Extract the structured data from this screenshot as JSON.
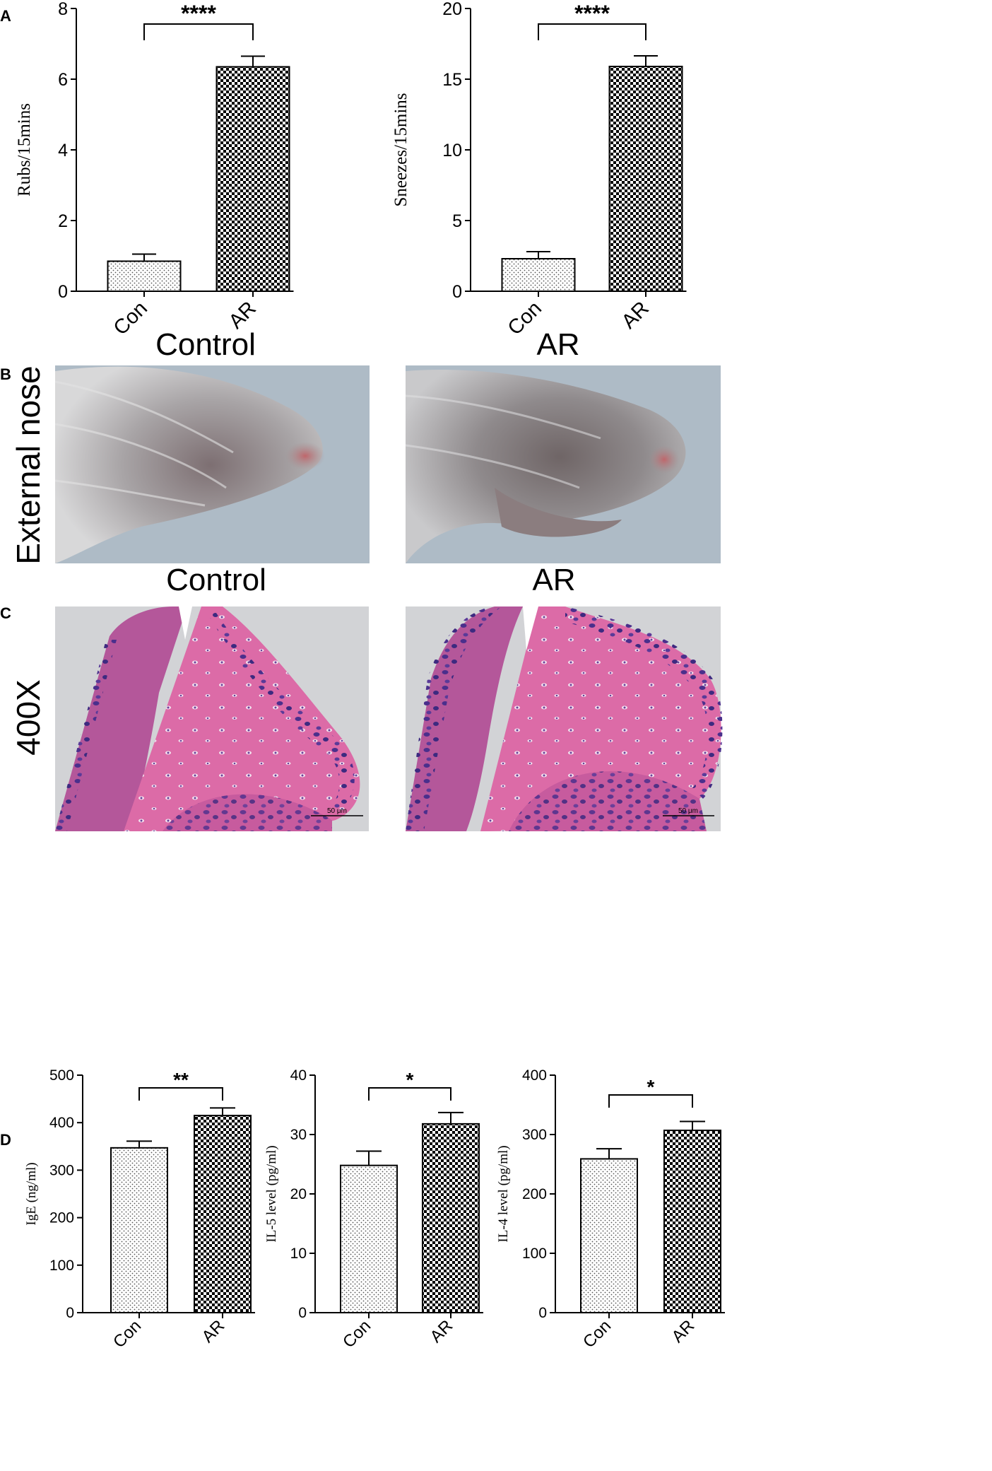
{
  "panels": {
    "a": "A",
    "b": "B",
    "c": "C",
    "d": "D"
  },
  "colors": {
    "axis": "#000000",
    "con_fill": "dotted-pattern",
    "ar_fill": "checkerboard-pattern",
    "photo_background": "#aebbc6",
    "histology_background": "#d2d3d6",
    "hematoxylin": "#4a2f8c",
    "eosin": "#dc6ba7"
  },
  "panel_b": {
    "titles": [
      "Control",
      "AR"
    ],
    "row_label": "External nose"
  },
  "panel_c": {
    "titles": [
      "Control",
      "AR"
    ],
    "row_label": "400X",
    "scale_bar": "50 μm"
  },
  "chart_data": [
    {
      "type": "bar",
      "categories": [
        "Con",
        "AR"
      ],
      "values": [
        0.85,
        6.35
      ],
      "errors": [
        0.2,
        0.3
      ],
      "ylabel": "Rubs/15mins",
      "ylim": [
        0,
        8
      ],
      "yticks": [
        0,
        2,
        4,
        6,
        8
      ],
      "significance": "****"
    },
    {
      "type": "bar",
      "categories": [
        "Con",
        "AR"
      ],
      "values": [
        2.3,
        15.9
      ],
      "errors": [
        0.5,
        0.75
      ],
      "ylabel": "Sneezes/15mins",
      "ylim": [
        0,
        20
      ],
      "yticks": [
        0,
        5,
        10,
        15,
        20
      ],
      "significance": "****"
    },
    {
      "type": "bar",
      "categories": [
        "Con",
        "AR"
      ],
      "values": [
        347,
        415
      ],
      "errors": [
        14,
        16
      ],
      "ylabel": "IgE (ng/ml)",
      "ylim": [
        0,
        500
      ],
      "yticks": [
        0,
        100,
        200,
        300,
        400,
        500
      ],
      "significance": "**"
    },
    {
      "type": "bar",
      "categories": [
        "Con",
        "AR"
      ],
      "values": [
        24.8,
        31.8
      ],
      "errors": [
        2.4,
        1.9
      ],
      "ylabel": "IL-5 level (pg/ml)",
      "ylim": [
        0,
        40
      ],
      "yticks": [
        0,
        10,
        20,
        30,
        40
      ],
      "significance": "*"
    },
    {
      "type": "bar",
      "categories": [
        "Con",
        "AR"
      ],
      "values": [
        259,
        307
      ],
      "errors": [
        17,
        15
      ],
      "ylabel": "IL-4 level (pg/ml)",
      "ylim": [
        0,
        400
      ],
      "yticks": [
        0,
        100,
        200,
        300,
        400
      ],
      "significance": "*"
    }
  ]
}
